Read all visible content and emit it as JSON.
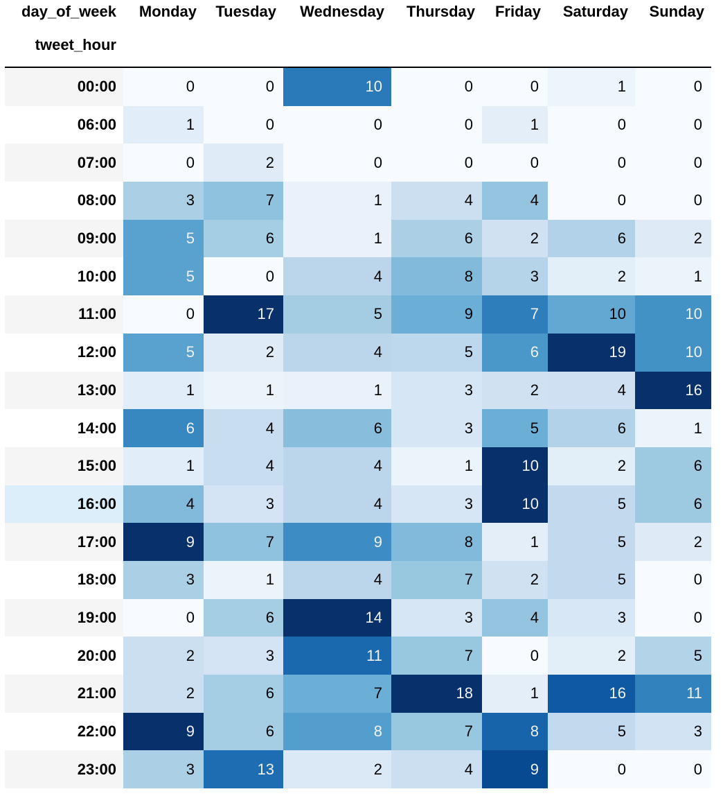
{
  "chart_data": {
    "type": "heatmap",
    "column_axis_label": "day_of_week",
    "row_axis_label": "tweet_hour",
    "columns": [
      "Monday",
      "Tuesday",
      "Wednesday",
      "Thursday",
      "Friday",
      "Saturday",
      "Sunday"
    ],
    "rows": [
      "00:00",
      "06:00",
      "07:00",
      "08:00",
      "09:00",
      "10:00",
      "11:00",
      "12:00",
      "13:00",
      "14:00",
      "15:00",
      "16:00",
      "17:00",
      "18:00",
      "19:00",
      "20:00",
      "21:00",
      "22:00",
      "23:00"
    ],
    "values": [
      [
        0,
        0,
        10,
        0,
        0,
        1,
        0
      ],
      [
        1,
        0,
        0,
        0,
        1,
        0,
        0
      ],
      [
        0,
        2,
        0,
        0,
        0,
        0,
        0
      ],
      [
        3,
        7,
        1,
        4,
        4,
        0,
        0
      ],
      [
        5,
        6,
        1,
        6,
        2,
        6,
        2
      ],
      [
        5,
        0,
        4,
        8,
        3,
        2,
        1
      ],
      [
        0,
        17,
        5,
        9,
        7,
        10,
        10
      ],
      [
        5,
        2,
        4,
        5,
        6,
        19,
        10
      ],
      [
        1,
        1,
        1,
        3,
        2,
        4,
        16
      ],
      [
        6,
        4,
        6,
        3,
        5,
        6,
        1
      ],
      [
        1,
        4,
        4,
        1,
        10,
        2,
        6
      ],
      [
        4,
        3,
        4,
        3,
        10,
        5,
        6
      ],
      [
        9,
        7,
        9,
        8,
        1,
        5,
        2
      ],
      [
        3,
        1,
        4,
        7,
        2,
        5,
        0
      ],
      [
        0,
        6,
        14,
        3,
        4,
        3,
        0
      ],
      [
        2,
        3,
        11,
        7,
        0,
        2,
        5
      ],
      [
        2,
        6,
        7,
        18,
        1,
        16,
        11
      ],
      [
        9,
        6,
        8,
        7,
        8,
        5,
        3
      ],
      [
        3,
        13,
        2,
        4,
        9,
        0,
        0
      ]
    ],
    "color_scale": "Blues",
    "color_normalization": "per-column",
    "highlighted_row": "16:00"
  },
  "colors": {
    "blues_light": "#f7fbff",
    "blues_dark": "#08306b",
    "index_stripe": "#f5f5f5",
    "hover_highlight": "#dbeefa"
  }
}
